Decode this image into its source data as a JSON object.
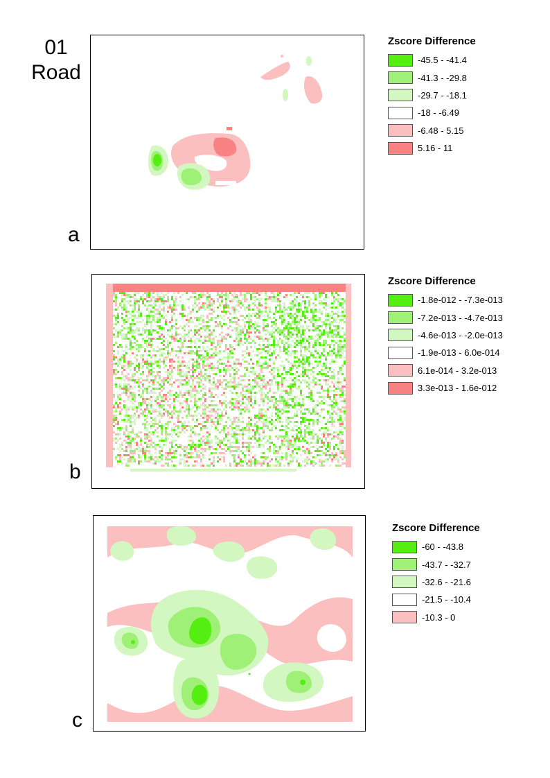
{
  "header": {
    "line1": "01",
    "line2": "Road"
  },
  "colors": {
    "class_dark_green": "#55ee11",
    "class_mid_green": "#9ff077",
    "class_light_green": "#d3f7c0",
    "class_white": "#ffffff",
    "class_light_pink": "#fbbfbf",
    "class_salmon": "#f98282"
  },
  "panels": [
    {
      "letter": "a",
      "legend": {
        "title": "Zscore Difference",
        "items": [
          {
            "label": "-45.5 - -41.4",
            "color": "#55ee11"
          },
          {
            "label": "-41.3 - -29.8",
            "color": "#9ff077"
          },
          {
            "label": "-29.7 - -18.1",
            "color": "#d3f7c0"
          },
          {
            "label": "-18 - -6.49",
            "color": "#ffffff"
          },
          {
            "label": "-6.48 - 5.15",
            "color": "#fbbfbf"
          },
          {
            "label": "5.16 - 11",
            "color": "#f98282"
          }
        ]
      }
    },
    {
      "letter": "b",
      "legend": {
        "title": "Zscore Difference",
        "items": [
          {
            "label": "-1.8e-012 - -7.3e-013",
            "color": "#55ee11"
          },
          {
            "label": "-7.2e-013 - -4.7e-013",
            "color": "#9ff077"
          },
          {
            "label": "-4.6e-013 - -2.0e-013",
            "color": "#d3f7c0"
          },
          {
            "label": "-1.9e-013 - 6.0e-014",
            "color": "#ffffff"
          },
          {
            "label": "6.1e-014 - 3.2e-013",
            "color": "#fbbfbf"
          },
          {
            "label": "3.3e-013 - 1.6e-012",
            "color": "#f98282"
          }
        ]
      }
    },
    {
      "letter": "c",
      "legend": {
        "title": "Zscore Difference",
        "items": [
          {
            "label": "-60 - -43.8",
            "color": "#55ee11"
          },
          {
            "label": "-43.7 - -32.7",
            "color": "#9ff077"
          },
          {
            "label": "-32.6 - -21.6",
            "color": "#d3f7c0"
          },
          {
            "label": "-21.5 - -10.4",
            "color": "#ffffff"
          },
          {
            "label": "-10.3 - 0",
            "color": "#fbbfbf"
          }
        ]
      }
    }
  ]
}
